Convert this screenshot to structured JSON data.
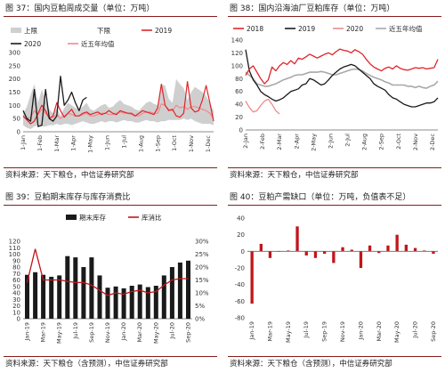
{
  "colors": {
    "red": "#e0252b",
    "black": "#1a1a1a",
    "pink": "#f08a8a",
    "gray": "#a8a8a8",
    "band": "#cfcfcf",
    "bar": "#1a1a1a",
    "darkred": "#c0161b"
  },
  "chart_data": [
    {
      "id": "c1",
      "type": "line",
      "title": "图 37：国内豆粕周成交量（单位：万吨）",
      "source": "资料来源：天下粮仓，中信证券研究部",
      "legend": [
        "上限",
        "下限",
        "2019",
        "2020",
        "近五年均值"
      ],
      "ylim": [
        0,
        300
      ],
      "yticks": [
        "0",
        "50",
        "100",
        "150",
        "200",
        "250",
        "300"
      ],
      "xticks": [
        "1-Jan",
        "1-Feb",
        "1-Mar",
        "1-Apr",
        "1-May",
        "1-Jun",
        "1-Jul",
        "1-Aug",
        "1-Sep",
        "1-Oct",
        "1-Nov",
        "1-Dec"
      ],
      "weeks": 52,
      "upper": [
        70,
        95,
        140,
        180,
        110,
        160,
        120,
        85,
        70,
        90,
        60,
        90,
        110,
        100,
        90,
        85,
        95,
        110,
        85,
        80,
        90,
        100,
        105,
        90,
        95,
        110,
        120,
        105,
        100,
        95,
        85,
        80,
        95,
        110,
        115,
        105,
        100,
        180,
        175,
        125,
        110,
        200,
        180,
        165,
        120,
        150,
        170,
        160,
        150,
        135,
        110,
        80
      ],
      "lower": [
        25,
        15,
        10,
        20,
        25,
        20,
        20,
        25,
        25,
        30,
        25,
        30,
        30,
        25,
        30,
        35,
        40,
        35,
        30,
        30,
        35,
        40,
        35,
        40,
        40,
        35,
        40,
        45,
        40,
        40,
        35,
        35,
        40,
        45,
        40,
        40,
        35,
        40,
        40,
        45,
        45,
        45,
        45,
        50,
        45,
        50,
        40,
        35,
        30,
        30,
        30,
        25
      ],
      "s2019": [
        60,
        45,
        30,
        40,
        70,
        100,
        80,
        50,
        60,
        110,
        80,
        55,
        70,
        85,
        60,
        60,
        70,
        75,
        65,
        70,
        75,
        65,
        70,
        80,
        70,
        65,
        80,
        75,
        70,
        70,
        60,
        70,
        80,
        75,
        70,
        65,
        90,
        180,
        100,
        80,
        85,
        60,
        55,
        70,
        190,
        90,
        75,
        80,
        120,
        175,
        110,
        40
      ],
      "s2020": [
        80,
        50,
        40,
        160,
        20,
        25,
        160,
        50,
        40,
        60,
        210,
        100,
        120,
        150,
        110,
        80,
        120,
        130
      ],
      "avg": [
        55,
        50,
        55,
        80,
        65,
        85,
        70,
        55,
        55,
        65,
        50,
        60,
        70,
        65,
        60,
        60,
        65,
        70,
        60,
        60,
        65,
        70,
        70,
        65,
        65,
        70,
        75,
        70,
        70,
        65,
        60,
        60,
        70,
        75,
        75,
        70,
        70,
        105,
        100,
        85,
        80,
        100,
        90,
        95,
        85,
        95,
        95,
        90,
        85,
        80,
        70,
        50
      ]
    },
    {
      "id": "c2",
      "type": "line",
      "title": "图 38：国内沿海油厂豆粕库存（单位：万吨）",
      "source": "资料来源：天下粮仓，中信证券研究部",
      "legend": [
        "2018",
        "2019",
        "2020",
        "近五年均值"
      ],
      "ylim": [
        0,
        140
      ],
      "yticks": [
        "0",
        "20",
        "40",
        "60",
        "80",
        "100",
        "120",
        "140"
      ],
      "xticks": [
        "2-Jan",
        "2-Feb",
        "2-Mar",
        "2-Apr",
        "2-May",
        "2-Jun",
        "2-Jul",
        "2-Aug",
        "2-Sep",
        "2-Oct",
        "2-Nov",
        "2-Dec"
      ],
      "weeks": 52,
      "s2018": [
        85,
        95,
        100,
        90,
        80,
        72,
        78,
        98,
        92,
        100,
        105,
        102,
        108,
        103,
        112,
        110,
        114,
        118,
        115,
        112,
        115,
        118,
        120,
        117,
        122,
        126,
        124,
        123,
        120,
        125,
        122,
        118,
        110,
        103,
        98,
        95,
        92,
        96,
        98,
        95,
        100,
        96,
        94,
        93,
        95,
        97,
        96,
        97,
        95,
        96,
        97,
        110
      ],
      "s2019": [
        125,
        92,
        78,
        70,
        60,
        55,
        52,
        48,
        45,
        47,
        50,
        55,
        60,
        62,
        64,
        70,
        72,
        80,
        78,
        74,
        70,
        72,
        78,
        85,
        90,
        95,
        98,
        100,
        102,
        100,
        95,
        90,
        85,
        80,
        72,
        68,
        65,
        62,
        55,
        50,
        48,
        44,
        40,
        38,
        36,
        36,
        38,
        40,
        42,
        42,
        44,
        50
      ],
      "s2020": [
        45,
        35,
        28,
        30,
        38,
        45,
        48,
        40,
        30,
        25
      ],
      "avg": [
        90,
        85,
        80,
        72,
        70,
        68,
        68,
        70,
        72,
        75,
        78,
        80,
        82,
        85,
        86,
        86,
        88,
        90,
        90,
        90,
        91,
        90,
        88,
        86,
        86,
        88,
        90,
        92,
        94,
        95,
        94,
        92,
        88,
        85,
        82,
        80,
        78,
        75,
        73,
        70,
        70,
        70,
        70,
        68,
        68,
        66,
        68,
        66,
        65,
        68,
        70,
        76
      ]
    },
    {
      "id": "c3",
      "type": "bar",
      "title": "图 39：豆粕期末库存与库存消费比",
      "source": "资料来源：天下粮仓（含预测），中信证券研究部",
      "legend": [
        "期末库存",
        "库消比"
      ],
      "ylim": [
        0,
        120
      ],
      "yticks": [
        "0",
        "10",
        "20",
        "30",
        "40",
        "50",
        "60",
        "70",
        "80",
        "90",
        "100",
        "110",
        "120"
      ],
      "y2lim": [
        0,
        30
      ],
      "y2ticks": [
        "0%",
        "5%",
        "10%",
        "15%",
        "20%",
        "25%",
        "30%"
      ],
      "categories": [
        "Jan-19",
        "Feb-19",
        "Mar-19",
        "Apr-19",
        "May-19",
        "Jun-19",
        "Jul-19",
        "Aug-19",
        "Sep-19",
        "Oct-19",
        "Nov-19",
        "Dec-19",
        "Jan-20",
        "Feb-20",
        "Mar-20",
        "Apr-20",
        "May-20",
        "Jun-20",
        "Jul-20",
        "Aug-20",
        "Sep-20"
      ],
      "xticks": [
        "Jan-19",
        "Mar-19",
        "May-19",
        "Jul-19",
        "Sep-19",
        "Nov-19",
        "Jan-20",
        "Mar-20",
        "May-20",
        "Jul-20",
        "Sep-20"
      ],
      "bars": [
        68,
        72,
        68,
        65,
        67,
        97,
        95,
        80,
        95,
        67,
        48,
        50,
        47,
        51,
        53,
        49,
        51,
        67,
        80,
        87,
        90
      ],
      "ratio": [
        14.0,
        27.0,
        15.0,
        15.0,
        15.0,
        14.5,
        14.0,
        14.0,
        13.0,
        11.0,
        9.0,
        10.0,
        9.5,
        10.5,
        11.0,
        10.0,
        10.5,
        13.0,
        15.0,
        15.5,
        15.5
      ]
    },
    {
      "id": "c4",
      "type": "bar",
      "title": "图 40：豆粕产需缺口（单位：万吨，负值表不足）",
      "source": "资料来源：天下粮仓（含预测），中信证券研究部",
      "ylim": [
        -80,
        40
      ],
      "yticks": [
        "-80",
        "-60",
        "-40",
        "-20",
        "0",
        "20",
        "40"
      ],
      "categories": [
        "Jan-19",
        "Feb-19",
        "Mar-19",
        "Apr-19",
        "May-19",
        "Jun-19",
        "Jul-19",
        "Aug-19",
        "Sep-19",
        "Oct-19",
        "Nov-19",
        "Dec-19",
        "Jan-20",
        "Feb-20",
        "Mar-20",
        "Apr-20",
        "May-20",
        "Jun-20",
        "Jul-20",
        "Aug-20",
        "Sep-20"
      ],
      "xticks": [
        "Jan-19",
        "Mar-19",
        "May-19",
        "Jul-19",
        "Sep-19",
        "Nov-19",
        "Jan-20",
        "Mar-20",
        "May-20",
        "Jul-20",
        "Sep-20"
      ],
      "bars": [
        -63,
        9,
        -8,
        0,
        1,
        30,
        -5,
        -8,
        -3,
        -14,
        5,
        2,
        -20,
        7,
        -2,
        7,
        20,
        8,
        4,
        1,
        -3
      ]
    }
  ]
}
